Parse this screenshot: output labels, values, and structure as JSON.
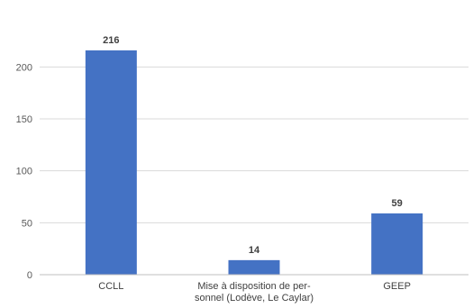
{
  "chart_data": {
    "type": "bar",
    "categories": [
      [
        "CCLL"
      ],
      [
        "Mise à disposition de per-",
        "sonnel (Lodève, Le Caylar)"
      ],
      [
        "GEEP"
      ]
    ],
    "values": [
      216,
      14,
      59
    ],
    "data_labels": [
      "216",
      "14",
      "59"
    ],
    "yticks": [
      0,
      50,
      100,
      150,
      200
    ],
    "ylim": [
      0,
      235
    ],
    "grid": true,
    "legend": "none",
    "bar_color": "#4472c4",
    "title": "",
    "xlabel": "",
    "ylabel": ""
  }
}
